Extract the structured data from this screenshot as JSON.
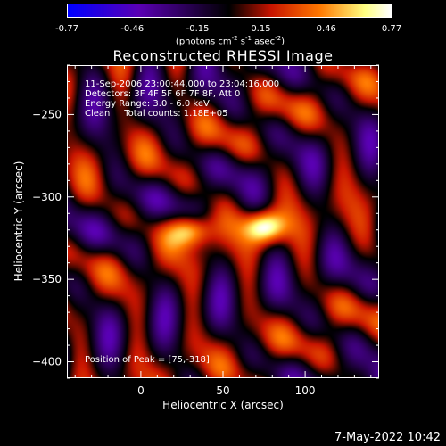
{
  "colorbar": {
    "ticks": [
      "-0.77",
      "-0.46",
      "-0.15",
      "0.15",
      "0.46",
      "0.77"
    ],
    "tick_values": [
      -0.77,
      -0.46,
      -0.15,
      0.15,
      0.46,
      0.77
    ],
    "range": [
      -0.77,
      0.77
    ],
    "units_prefix": "(photons cm",
    "units_exp1": "-2",
    "units_mid1": " s",
    "units_exp2": "-1",
    "units_mid2": " asec",
    "units_exp3": "-2",
    "units_suffix": ")"
  },
  "chart_data": {
    "type": "heatmap",
    "title": "Reconstructed RHESSI Image",
    "xlabel": "Heliocentric X (arcsec)",
    "ylabel": "Heliocentric Y (arcsec)",
    "xlim": [
      -45,
      145
    ],
    "ylim": [
      -410,
      -220
    ],
    "xticks": [
      0,
      50,
      100
    ],
    "xtick_labels": [
      "0",
      "50",
      "100"
    ],
    "yticks": [
      -250,
      -300,
      -350,
      -400
    ],
    "ytick_labels": [
      "−250",
      "−300",
      "−350",
      "−400"
    ],
    "colormap": "blue-purple-black-red-yellow-white",
    "colormap_stops": [
      "#0000ff",
      "#5a00b4",
      "#000000",
      "#c81400",
      "#ff7800",
      "#ffff80",
      "#ffffff"
    ],
    "peak_position": [
      75,
      -318
    ],
    "sources": [
      {
        "x": 75,
        "y": -318,
        "value": 0.77
      },
      {
        "x": 30,
        "y": -320,
        "value": 0.7
      }
    ],
    "annotations": [
      "11-Sep-2006 23:00:44.000 to 23:04:16.000",
      "Detectors: 3F 4F 5F 6F 7F 8F, Att 0",
      "Energy Range: 3.0 - 6.0 keV",
      "Clean     Total counts: 1.18E+05"
    ],
    "peak_label": "Position of Peak = [75,-318]"
  },
  "footer": {
    "timestamp": "7-May-2022 10:42"
  }
}
